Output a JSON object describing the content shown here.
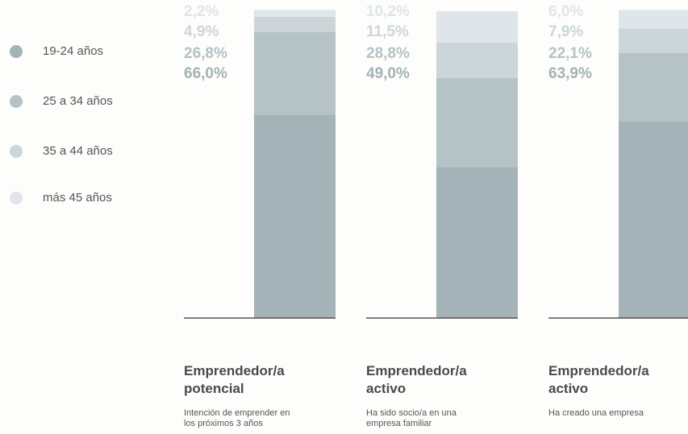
{
  "chart_data": [
    {
      "type": "bar",
      "title": "Emprendedor/a potencial",
      "subtitle": "Intención de emprender en los próximos 3 años",
      "ylim": [
        0,
        100
      ],
      "series": [
        {
          "name": "19-24 años",
          "color": "#a3b3b7",
          "values": [
            66.0
          ],
          "value_labels": [
            "66,0%"
          ]
        },
        {
          "name": "25 a 34 años",
          "color": "#b5c3c7",
          "values": [
            26.8
          ],
          "value_labels": [
            "26,8%"
          ]
        },
        {
          "name": "35 a 44 años",
          "color": "#ccd6d9",
          "values": [
            4.9
          ],
          "value_labels": [
            "4,9%"
          ]
        },
        {
          "name": "más 45 años",
          "color": "#dfe5e8",
          "values": [
            2.2
          ],
          "value_labels": [
            "2,2%"
          ]
        }
      ]
    },
    {
      "type": "bar",
      "title": "Emprendedor/a activo",
      "subtitle": "Ha sido socio/a en una empresa familiar",
      "ylim": [
        0,
        100
      ],
      "series": [
        {
          "name": "19-24 años",
          "color": "#a3b3b7",
          "values": [
            49.0
          ],
          "value_labels": [
            "49,0%"
          ]
        },
        {
          "name": "25 a 34 años",
          "color": "#b5c3c7",
          "values": [
            28.8
          ],
          "value_labels": [
            "28,8%"
          ]
        },
        {
          "name": "35 a 44 años",
          "color": "#ccd6d9",
          "values": [
            11.5
          ],
          "value_labels": [
            "11,5%"
          ]
        },
        {
          "name": "más 45 años",
          "color": "#dfe5e8",
          "values": [
            10.2
          ],
          "value_labels": [
            "10,2%"
          ]
        }
      ]
    },
    {
      "type": "bar",
      "title": "Emprendedor/a activo",
      "subtitle": "Ha creado una empresa",
      "ylim": [
        0,
        100
      ],
      "series": [
        {
          "name": "19-24 años",
          "color": "#a3b3b7",
          "values": [
            63.9
          ],
          "value_labels": [
            "63,9%"
          ]
        },
        {
          "name": "25 a 34 años",
          "color": "#b5c3c7",
          "values": [
            22.1
          ],
          "value_labels": [
            "22,1%"
          ]
        },
        {
          "name": "35 a 44 años",
          "color": "#ccd6d9",
          "values": [
            7.9
          ],
          "value_labels": [
            "7,9%"
          ]
        },
        {
          "name": "más 45 años",
          "color": "#dfe5e8",
          "values": [
            6.0
          ],
          "value_labels": [
            "6,0%"
          ]
        }
      ]
    }
  ]
}
